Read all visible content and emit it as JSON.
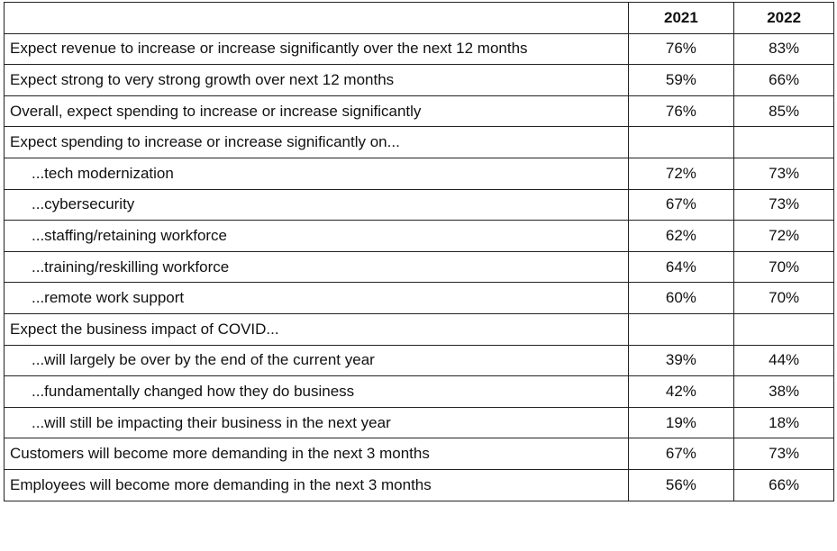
{
  "table": {
    "header": [
      "2021",
      "2022"
    ],
    "rows": [
      [
        "Expect revenue to increase or increase significantly over the next 12 months",
        "76%",
        "83%"
      ],
      [
        "Expect strong to very strong growth over next 12 months",
        "59%",
        "66%"
      ],
      [
        "Overall, expect spending to increase or increase significantly",
        "76%",
        "85%"
      ],
      [
        "Expect spending to increase or increase significantly on..."
      ],
      [
        "...tech modernization",
        "72%",
        "73%"
      ],
      [
        "...cybersecurity",
        "67%",
        "73%"
      ],
      [
        "...staffing/retaining workforce",
        "62%",
        "72%"
      ],
      [
        "...training/reskilling workforce",
        "64%",
        "70%"
      ],
      [
        "...remote work support",
        "60%",
        "70%"
      ],
      [
        "Expect the business impact of COVID..."
      ],
      [
        "...will largely be over by the end of the current year",
        "39%",
        "44%"
      ],
      [
        "...fundamentally changed how they do business",
        "42%",
        "38%"
      ],
      [
        "...will still be impacting their business in the next year",
        "19%",
        "18%"
      ],
      [
        "Customers will become more demanding in the next 3 months",
        "67%",
        "73%"
      ],
      [
        "Employees will become more demanding in the next 3 months",
        "56%",
        "66%"
      ]
    ]
  }
}
